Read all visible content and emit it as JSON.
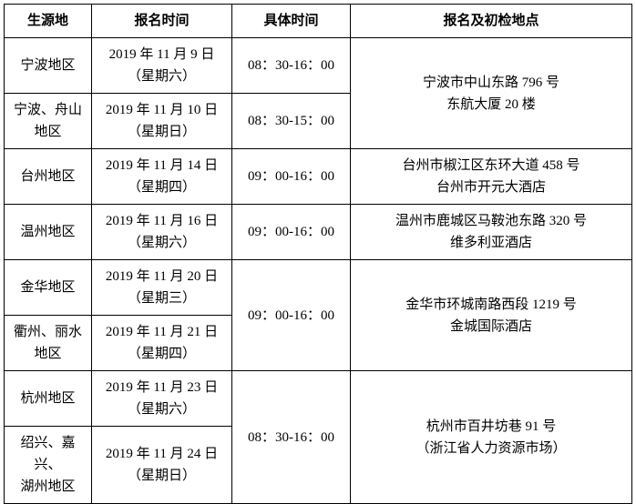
{
  "headers": {
    "col1": "生源地",
    "col2": "报名时间",
    "col3": "具体时间",
    "col4": "报名及初检地点"
  },
  "rows": {
    "r1": {
      "origin": "宁波地区",
      "date_line1": "2019 年 11 月 9 日",
      "date_line2": "（星期六）",
      "time": "08：30-16：00"
    },
    "r2": {
      "origin_line1": "宁波、舟山",
      "origin_line2": "地区",
      "date_line1": "2019 年 11 月 10 日",
      "date_line2": "（星期日）",
      "time": "08：30-15：00"
    },
    "loc12_line1": "宁波市中山东路 796 号",
    "loc12_line2": "东航大厦 20 楼",
    "r3": {
      "origin": "台州地区",
      "date_line1": "2019 年 11 月 14 日",
      "date_line2": "（星期四）",
      "time": "09：00-16：00",
      "loc_line1": "台州市椒江区东环大道 458 号",
      "loc_line2": "台州市开元大酒店"
    },
    "r4": {
      "origin": "温州地区",
      "date_line1": "2019 年 11 月 16 日",
      "date_line2": "（星期六）",
      "time": "09：00-16：00",
      "loc_line1": "温州市鹿城区马鞍池东路 320 号",
      "loc_line2": "维多利亚酒店"
    },
    "r5": {
      "origin": "金华地区",
      "date_line1": "2019 年 11 月 20 日",
      "date_line2": "（星期三）"
    },
    "r6": {
      "origin_line1": "衢州、丽水",
      "origin_line2": "地区",
      "date_line1": "2019 年 11 月 21 日",
      "date_line2": "（星期四）"
    },
    "time56": "09：00-16：00",
    "loc56_line1": "金华市环城南路西段 1219 号",
    "loc56_line2": "金城国际酒店",
    "r7": {
      "origin": "杭州地区",
      "date_line1": "2019 年 11 月 23 日",
      "date_line2": "（星期六）"
    },
    "r8": {
      "origin_line1": "绍兴、嘉兴、",
      "origin_line2": "湖州地区",
      "date_line1": "2019 年 11 月 24 日",
      "date_line2": "（星期日）"
    },
    "time78": "08：30-16：00",
    "loc78_line1": "杭州市百井坊巷 91 号",
    "loc78_line2": "（浙江省人力资源市场）"
  },
  "style": {
    "border_color": "#000000",
    "background_color": "#ffffff",
    "text_color": "#000000",
    "font_size": 15,
    "header_font_weight": "bold"
  }
}
